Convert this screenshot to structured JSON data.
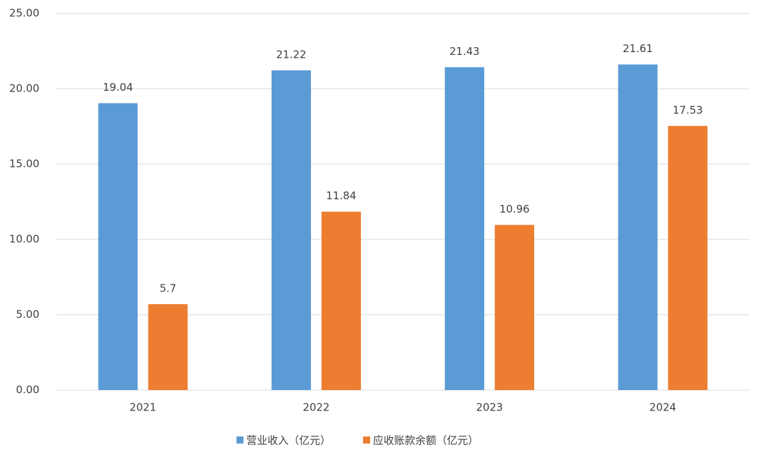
{
  "chart_data": {
    "type": "bar",
    "categories": [
      "2021",
      "2022",
      "2023",
      "2024"
    ],
    "series": [
      {
        "name": "营业收入（亿元）",
        "color": "#5b9bd5",
        "values": [
          19.04,
          21.22,
          21.43,
          21.61
        ]
      },
      {
        "name": "应收账款余额（亿元）",
        "color": "#ed7d31",
        "values": [
          5.7,
          11.84,
          10.96,
          17.53
        ]
      }
    ],
    "ylim": [
      0,
      25
    ],
    "yticks": [
      {
        "value": 0,
        "label": "0.00"
      },
      {
        "value": 5,
        "label": "5.00"
      },
      {
        "value": 10,
        "label": "10.00"
      },
      {
        "value": 15,
        "label": "15.00"
      },
      {
        "value": 20,
        "label": "20.00"
      },
      {
        "value": 25,
        "label": "25.00"
      }
    ],
    "grid": true,
    "legend": "bottom"
  }
}
